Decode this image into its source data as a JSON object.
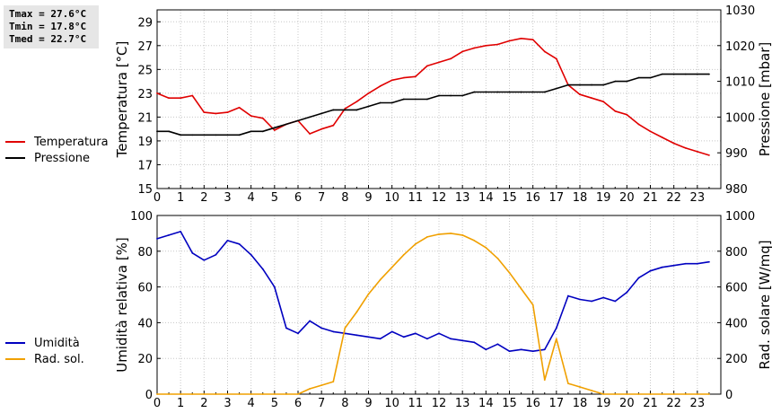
{
  "stats": {
    "tmax": "Tmax = 27.6°C",
    "tmin": "Tmin = 17.8°C",
    "tmed": "Tmed = 22.7°C"
  },
  "colors": {
    "temperature": "#e00000",
    "pressure": "#000000",
    "humidity": "#0000c0",
    "solar": "#f0a000",
    "grid": "#c8c8c8"
  },
  "chart_data": [
    {
      "type": "line",
      "ylabel": "Temperatura [°C]",
      "y2label": "Pressione [mbar]",
      "xlim": [
        0,
        24
      ],
      "ylim": [
        15,
        30
      ],
      "y2lim": [
        980,
        1030
      ],
      "xticks": [
        "0",
        "1",
        "2",
        "3",
        "4",
        "5",
        "6",
        "7",
        "8",
        "9",
        "10",
        "11",
        "12",
        "13",
        "14",
        "15",
        "16",
        "17",
        "18",
        "19",
        "20",
        "21",
        "22",
        "23"
      ],
      "yticks": [
        "15",
        "17",
        "19",
        "21",
        "23",
        "25",
        "27",
        "29"
      ],
      "y2ticks": [
        "980",
        "990",
        "1000",
        "1010",
        "1020",
        "1030"
      ],
      "grid": true,
      "legend_position": "left",
      "series": [
        {
          "name": "Temperatura",
          "axis": "left",
          "x": [
            0,
            0.5,
            1,
            1.5,
            2,
            2.5,
            3,
            3.5,
            4,
            4.5,
            5,
            5.5,
            6,
            6.5,
            7,
            7.5,
            8,
            8.5,
            9,
            9.5,
            10,
            10.5,
            11,
            11.5,
            12,
            12.5,
            13,
            13.5,
            14,
            14.5,
            15,
            15.5,
            16,
            16.5,
            17,
            17.5,
            18,
            18.5,
            19,
            19.5,
            20,
            20.5,
            21,
            21.5,
            22,
            22.5,
            23,
            23.5
          ],
          "values": [
            23.0,
            22.6,
            22.6,
            22.8,
            21.4,
            21.3,
            21.4,
            21.8,
            21.1,
            20.9,
            19.9,
            20.4,
            20.7,
            19.6,
            20.0,
            20.3,
            21.7,
            22.3,
            23.0,
            23.6,
            24.1,
            24.3,
            24.4,
            25.3,
            25.6,
            25.9,
            26.5,
            26.8,
            27.0,
            27.1,
            27.4,
            27.6,
            27.5,
            26.5,
            25.9,
            23.7,
            22.9,
            22.6,
            22.3,
            21.5,
            21.2,
            20.4,
            19.8,
            19.3,
            18.8,
            18.4,
            18.1,
            17.8
          ]
        },
        {
          "name": "Pressione",
          "axis": "right",
          "x": [
            0,
            0.5,
            1,
            1.5,
            2,
            2.5,
            3,
            3.5,
            4,
            4.5,
            5,
            5.5,
            6,
            6.5,
            7,
            7.5,
            8,
            8.5,
            9,
            9.5,
            10,
            10.5,
            11,
            11.5,
            12,
            12.5,
            13,
            13.5,
            14,
            14.5,
            15,
            15.5,
            16,
            16.5,
            17,
            17.5,
            18,
            18.5,
            19,
            19.5,
            20,
            20.5,
            21,
            21.5,
            22,
            22.5,
            23,
            23.5
          ],
          "values": [
            996,
            996,
            995,
            995,
            995,
            995,
            995,
            995,
            996,
            996,
            997,
            998,
            999,
            1000,
            1001,
            1002,
            1002,
            1002,
            1003,
            1004,
            1004,
            1005,
            1005,
            1005,
            1006,
            1006,
            1006,
            1007,
            1007,
            1007,
            1007,
            1007,
            1007,
            1007,
            1008,
            1009,
            1009,
            1009,
            1009,
            1010,
            1010,
            1011,
            1011,
            1012,
            1012,
            1012,
            1012,
            1012
          ]
        }
      ]
    },
    {
      "type": "line",
      "ylabel": "Umidità relativa [%]",
      "y2label": "Rad. solare [W/mq]",
      "xlim": [
        0,
        24
      ],
      "ylim": [
        0,
        100
      ],
      "y2lim": [
        0,
        1000
      ],
      "xticks": [
        "0",
        "1",
        "2",
        "3",
        "4",
        "5",
        "6",
        "7",
        "8",
        "9",
        "10",
        "11",
        "12",
        "13",
        "14",
        "15",
        "16",
        "17",
        "18",
        "19",
        "20",
        "21",
        "22",
        "23"
      ],
      "yticks": [
        "0",
        "20",
        "40",
        "60",
        "80",
        "100"
      ],
      "y2ticks": [
        "0",
        "200",
        "400",
        "600",
        "800",
        "1000"
      ],
      "grid": true,
      "legend_position": "left",
      "series": [
        {
          "name": "Umidità",
          "axis": "left",
          "x": [
            0,
            0.5,
            1,
            1.5,
            2,
            2.5,
            3,
            3.5,
            4,
            4.5,
            5,
            5.5,
            6,
            6.5,
            7,
            7.5,
            8,
            8.5,
            9,
            9.5,
            10,
            10.5,
            11,
            11.5,
            12,
            12.5,
            13,
            13.5,
            14,
            14.5,
            15,
            15.5,
            16,
            16.5,
            17,
            17.5,
            18,
            18.5,
            19,
            19.5,
            20,
            20.5,
            21,
            21.5,
            22,
            22.5,
            23,
            23.5
          ],
          "values": [
            87,
            89,
            91,
            79,
            75,
            78,
            86,
            84,
            78,
            70,
            60,
            37,
            34,
            41,
            37,
            35,
            34,
            33,
            32,
            31,
            35,
            32,
            34,
            31,
            34,
            31,
            30,
            29,
            25,
            28,
            24,
            25,
            24,
            25,
            37,
            55,
            53,
            52,
            54,
            52,
            57,
            65,
            69,
            71,
            72,
            73,
            73,
            74
          ]
        },
        {
          "name": "Rad. sol.",
          "axis": "right",
          "x": [
            0,
            0.5,
            1,
            1.5,
            2,
            2.5,
            3,
            3.5,
            4,
            4.5,
            5,
            5.5,
            6,
            6.5,
            7,
            7.5,
            8,
            8.5,
            9,
            9.5,
            10,
            10.5,
            11,
            11.5,
            12,
            12.5,
            13,
            13.5,
            14,
            14.5,
            15,
            15.5,
            16,
            16.5,
            17,
            17.5,
            18,
            18.5,
            19,
            19.5,
            20,
            20.5,
            21,
            21.5,
            22,
            22.5,
            23,
            23.5
          ],
          "values": [
            0,
            0,
            0,
            0,
            0,
            0,
            0,
            0,
            0,
            0,
            0,
            0,
            0,
            30,
            50,
            70,
            370,
            460,
            560,
            640,
            710,
            780,
            840,
            880,
            895,
            900,
            890,
            860,
            820,
            760,
            680,
            590,
            500,
            80,
            310,
            60,
            40,
            20,
            0,
            0,
            0,
            0,
            0,
            0,
            0,
            0,
            0,
            0
          ]
        }
      ]
    }
  ]
}
